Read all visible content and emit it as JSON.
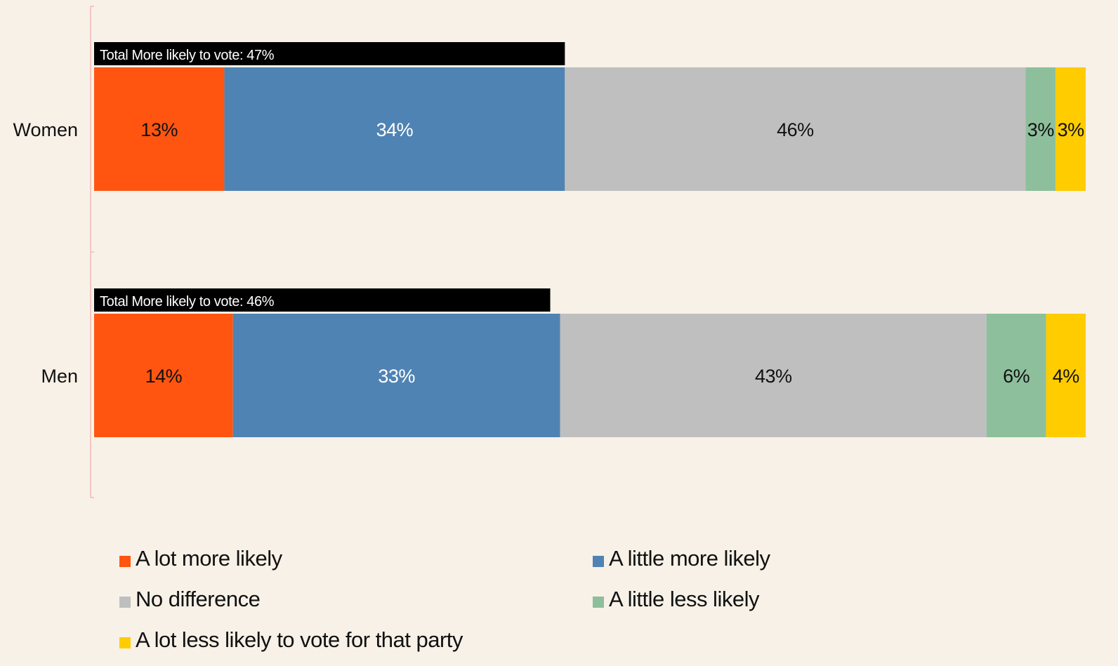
{
  "chart_data": {
    "type": "bar",
    "orientation": "horizontal",
    "stacked": true,
    "categories": [
      "Women",
      "Men"
    ],
    "series": [
      {
        "name": "A lot more likely",
        "values": [
          13,
          14
        ],
        "labels": [
          "13%",
          "14%"
        ],
        "color": "#ff5511",
        "text_color": "#111111"
      },
      {
        "name": "A little more likely",
        "values": [
          34,
          33
        ],
        "labels": [
          "34%",
          "33%"
        ],
        "color": "#4f83b3",
        "text_color": "#ffffff"
      },
      {
        "name": "No difference",
        "values": [
          46,
          43
        ],
        "labels": [
          "46%",
          "43%"
        ],
        "color": "#bfbfbf",
        "text_color": "#111111"
      },
      {
        "name": "A little less likely",
        "values": [
          3,
          6
        ],
        "labels": [
          "3%",
          "6%"
        ],
        "color": "#8dbf9c",
        "text_color": "#111111"
      },
      {
        "name": "A lot less likely to vote for that party",
        "values": [
          3,
          4
        ],
        "labels": [
          "3%",
          "4%"
        ],
        "color": "#ffcc00",
        "text_color": "#111111"
      }
    ],
    "annotations": [
      {
        "category": "Women",
        "text": "Total More likely to vote: 47%",
        "value": 47
      },
      {
        "category": "Men",
        "text": "Total More likely to vote: 46%",
        "value": 46
      }
    ],
    "legend_position": "bottom",
    "grid": false,
    "title": "",
    "xlabel": "",
    "ylabel": ""
  }
}
